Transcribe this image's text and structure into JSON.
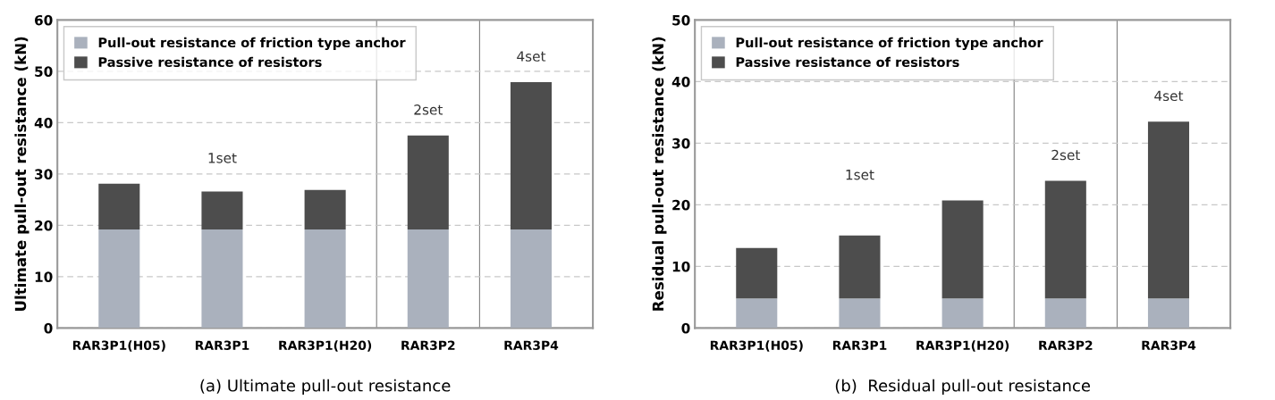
{
  "chart_data": [
    {
      "type": "bar",
      "title": "(a) Ultimate pull-out resistance",
      "ylabel": "Ultimate pull-out resistance (kN)",
      "categories": [
        "RAR3P1(H05)",
        "RAR3P1",
        "RAR3P1(H20)",
        "RAR3P2",
        "RAR3P4"
      ],
      "stacked": true,
      "series": [
        {
          "name": "Pull-out resistance of friction type anchor",
          "color": "#aab1bd",
          "values": [
            19.2,
            19.2,
            19.2,
            19.2,
            19.2
          ]
        },
        {
          "name": "Passive resistance of resistors",
          "color": "#4d4d4d",
          "values": [
            8.9,
            7.4,
            7.7,
            18.3,
            28.7
          ]
        }
      ],
      "ylim": [
        0,
        60
      ],
      "yticks": [
        0,
        10,
        20,
        30,
        40,
        50,
        60
      ],
      "grid": "y",
      "legend": "top left",
      "annotations": [
        "1set",
        "2set",
        "4set"
      ]
    },
    {
      "type": "bar",
      "title": "(b)  Residual pull-out resistance",
      "ylabel": "Residual pull-out resistance (kN)",
      "categories": [
        "RAR3P1(H05)",
        "RAR3P1",
        "RAR3P1(H20)",
        "RAR3P2",
        "RAR3P4"
      ],
      "stacked": true,
      "series": [
        {
          "name": "Pull-out resistance of friction type anchor",
          "color": "#aab1bd",
          "values": [
            4.8,
            4.8,
            4.8,
            4.8,
            4.8
          ]
        },
        {
          "name": "Passive resistance of resistors",
          "color": "#4d4d4d",
          "values": [
            8.2,
            10.2,
            15.9,
            19.1,
            28.7
          ]
        }
      ],
      "ylim": [
        0,
        50
      ],
      "yticks": [
        0,
        10,
        20,
        30,
        40,
        50
      ],
      "grid": "y",
      "legend": "top left",
      "annotations": [
        "1set",
        "2set",
        "4set"
      ]
    }
  ]
}
